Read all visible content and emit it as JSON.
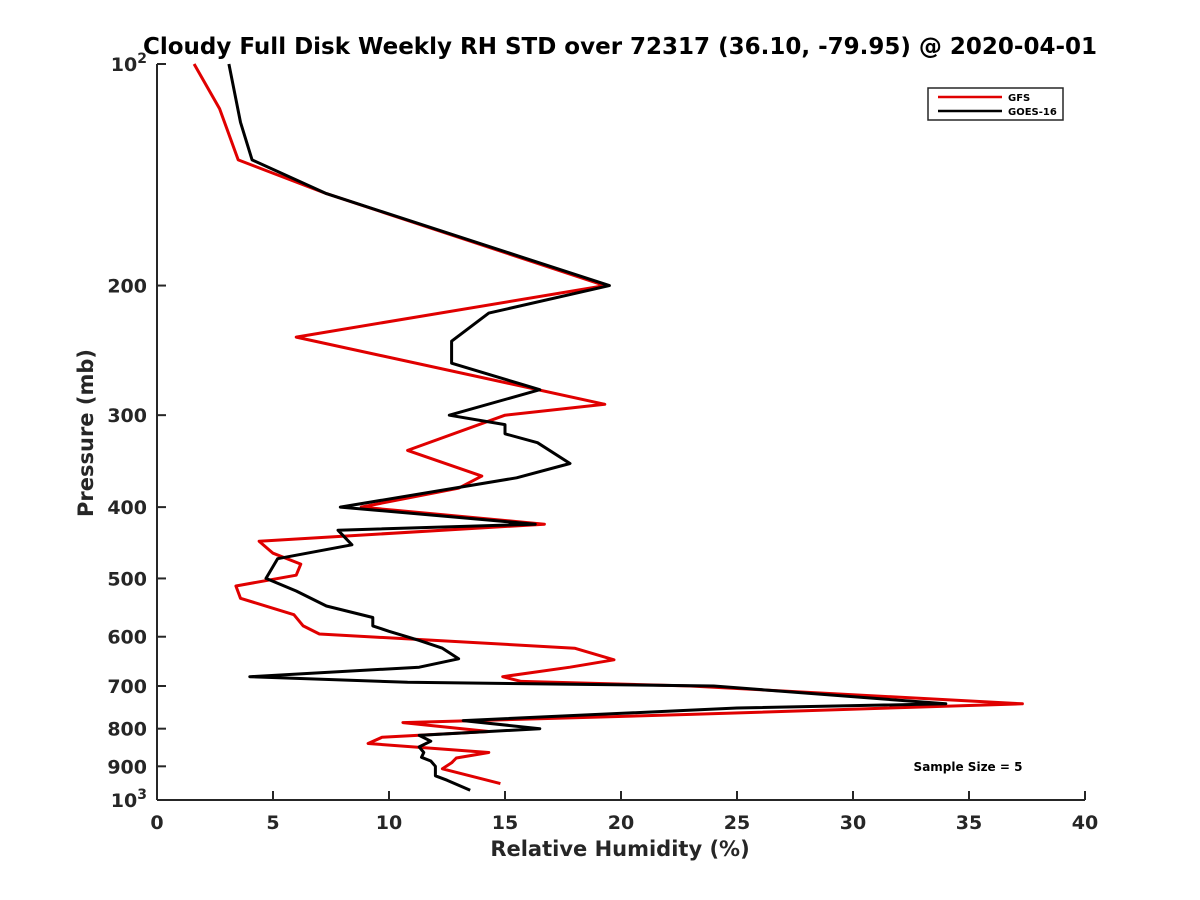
{
  "chart_data": {
    "type": "line",
    "title": "Cloudy Full Disk Weekly RH STD over 72317 (36.10, -79.95) @ 2020-04-01",
    "xlabel": "Relative Humidity (%)",
    "ylabel": "Pressure (mb)",
    "xlim": [
      0,
      40
    ],
    "ylim": [
      100,
      1000
    ],
    "yscale": "log",
    "y_reversed": true,
    "x_ticks": [
      "0",
      "5",
      "10",
      "15",
      "20",
      "25",
      "30",
      "35",
      "40"
    ],
    "y_ticks": [
      {
        "value": 100,
        "base": "10",
        "exp": "2"
      },
      {
        "value": 200,
        "base": "200",
        "exp": ""
      },
      {
        "value": 300,
        "base": "300",
        "exp": ""
      },
      {
        "value": 400,
        "base": "400",
        "exp": ""
      },
      {
        "value": 500,
        "base": "500",
        "exp": ""
      },
      {
        "value": 600,
        "base": "600",
        "exp": ""
      },
      {
        "value": 700,
        "base": "700",
        "exp": ""
      },
      {
        "value": 800,
        "base": "800",
        "exp": ""
      },
      {
        "value": 900,
        "base": "900",
        "exp": ""
      },
      {
        "value": 1000,
        "base": "10",
        "exp": "3"
      }
    ],
    "legend_position": "top-right",
    "annotation": "Sample Size = 5",
    "series": [
      {
        "name": "GFS",
        "color": "#e00000",
        "points": [
          [
            1.6,
            100
          ],
          [
            2.7,
            115
          ],
          [
            3.5,
            135
          ],
          [
            7.3,
            150
          ],
          [
            19.3,
            200
          ],
          [
            6.0,
            235
          ],
          [
            19.3,
            290
          ],
          [
            15.0,
            300
          ],
          [
            10.8,
            335
          ],
          [
            14.0,
            363
          ],
          [
            13.0,
            377
          ],
          [
            8.8,
            400
          ],
          [
            16.7,
            422
          ],
          [
            4.4,
            445
          ],
          [
            5.0,
            462
          ],
          [
            6.2,
            478
          ],
          [
            6.0,
            495
          ],
          [
            3.4,
            512
          ],
          [
            3.6,
            532
          ],
          [
            5.9,
            560
          ],
          [
            6.3,
            580
          ],
          [
            7.0,
            595
          ],
          [
            18.0,
            622
          ],
          [
            19.7,
            645
          ],
          [
            17.8,
            660
          ],
          [
            14.9,
            680
          ],
          [
            15.7,
            690
          ],
          [
            23.0,
            700
          ],
          [
            37.3,
            740
          ],
          [
            23.0,
            765
          ],
          [
            10.6,
            785
          ],
          [
            14.3,
            807
          ],
          [
            9.7,
            822
          ],
          [
            9.1,
            838
          ],
          [
            14.3,
            862
          ],
          [
            12.9,
            877
          ],
          [
            12.7,
            890
          ],
          [
            12.3,
            907
          ],
          [
            14.8,
            950
          ]
        ]
      },
      {
        "name": "GOES-16",
        "color": "#000000",
        "points": [
          [
            3.1,
            100
          ],
          [
            3.6,
            120
          ],
          [
            4.1,
            135
          ],
          [
            7.3,
            150
          ],
          [
            19.5,
            200
          ],
          [
            14.3,
            218
          ],
          [
            12.7,
            238
          ],
          [
            12.7,
            255
          ],
          [
            16.5,
            277
          ],
          [
            12.6,
            300
          ],
          [
            15.0,
            309
          ],
          [
            15.0,
            318
          ],
          [
            16.4,
            327
          ],
          [
            17.8,
            349
          ],
          [
            15.5,
            365
          ],
          [
            7.9,
            400
          ],
          [
            16.3,
            422
          ],
          [
            7.8,
            430
          ],
          [
            8.4,
            450
          ],
          [
            5.2,
            470
          ],
          [
            4.7,
            500
          ],
          [
            6.0,
            520
          ],
          [
            7.3,
            545
          ],
          [
            9.3,
            565
          ],
          [
            9.3,
            580
          ],
          [
            10.0,
            590
          ],
          [
            11.3,
            607
          ],
          [
            12.3,
            622
          ],
          [
            13.0,
            643
          ],
          [
            11.3,
            660
          ],
          [
            4.0,
            680
          ],
          [
            10.8,
            692
          ],
          [
            24.0,
            700
          ],
          [
            34.0,
            740
          ],
          [
            25.0,
            750
          ],
          [
            13.2,
            780
          ],
          [
            16.5,
            800
          ],
          [
            11.3,
            817
          ],
          [
            11.8,
            832
          ],
          [
            11.3,
            847
          ],
          [
            11.5,
            862
          ],
          [
            11.4,
            875
          ],
          [
            11.8,
            885
          ],
          [
            12.0,
            900
          ],
          [
            12.0,
            927
          ],
          [
            12.5,
            940
          ],
          [
            13.5,
            970
          ]
        ]
      }
    ]
  }
}
